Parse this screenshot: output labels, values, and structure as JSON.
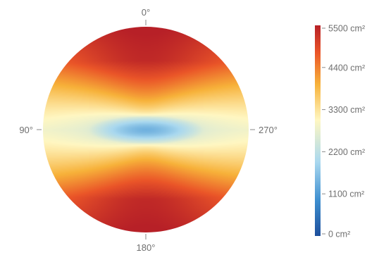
{
  "chart_data": {
    "type": "heatmap",
    "projection": "polar-disc",
    "angle_labels": {
      "top": "0°",
      "left": "90°",
      "bottom": "180°",
      "right": "270°"
    },
    "colorbar": {
      "range": [
        0,
        5500
      ],
      "tick_values": [
        0,
        1100,
        2200,
        3300,
        4400,
        5500
      ],
      "tick_labels": [
        "0 cm²",
        "1100 cm²",
        "2200 cm²",
        "3300 cm²",
        "4400 cm²",
        "5500 cm²"
      ],
      "colors": [
        "#1d4f9c",
        "#3e8fd0",
        "#a9d8ef",
        "#fff7c2",
        "#f7b23a",
        "#ea5528",
        "#b72027"
      ]
    },
    "field": {
      "center_value": 1400,
      "edge_value_vertical": 5300,
      "edge_value_horizontal": 3200,
      "description_values": [
        1400,
        2200,
        3300,
        4400,
        5300
      ]
    }
  }
}
